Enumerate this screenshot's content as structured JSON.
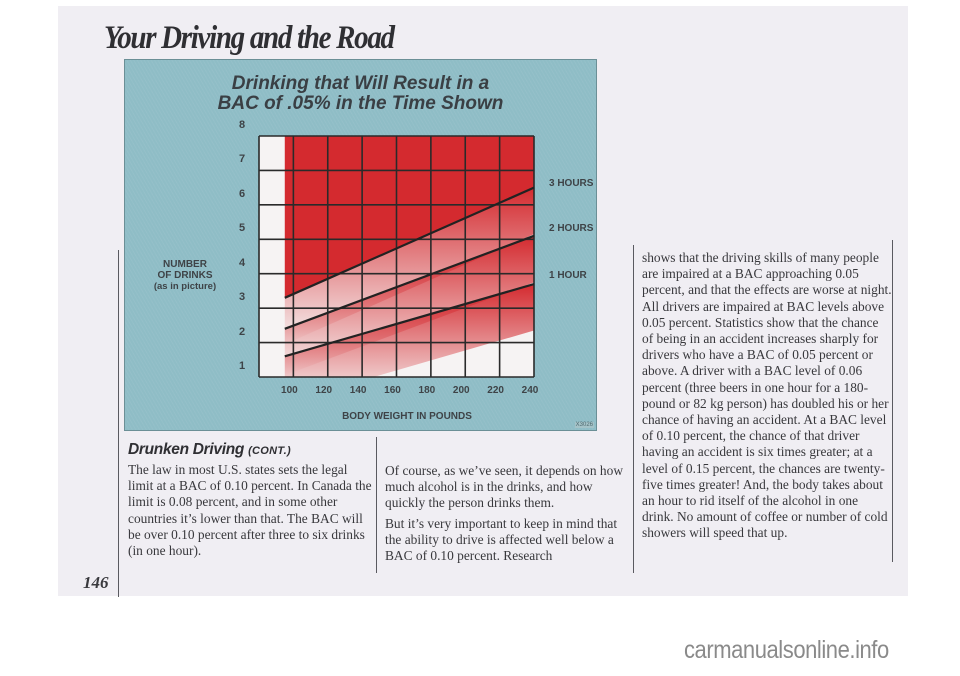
{
  "page": {
    "header_title": "Your Driving and the Road",
    "page_number": "146",
    "watermark": "carmanualsonline.info"
  },
  "figure": {
    "title_line1": "Drinking that Will Result in a",
    "title_line2": "BAC of .05% in the Time Shown",
    "y_axis_title_line1": "NUMBER",
    "y_axis_title_line2": "OF DRINKS",
    "y_axis_title_line3": "(as in picture)",
    "x_axis_title": "BODY WEIGHT IN POUNDS",
    "y_ticks": [
      "8",
      "7",
      "6",
      "5",
      "4",
      "3",
      "2",
      "1"
    ],
    "x_ticks": [
      "100",
      "120",
      "140",
      "160",
      "180",
      "200",
      "220",
      "240"
    ],
    "series_labels": [
      "3 HOURS",
      "2 HOURS",
      "1 HOUR"
    ],
    "figure_code": "X3026",
    "colors": {
      "panel": "#8fbdc6",
      "red": "#d42a2f",
      "grid": "#2a2a2a",
      "white_cell": "#f6f3f3"
    }
  },
  "chart_data": {
    "type": "line",
    "title": "Drinking that Will Result in a BAC of .05% in the Time Shown",
    "xlabel": "BODY WEIGHT IN POUNDS",
    "ylabel": "NUMBER OF DRINKS (as in picture)",
    "xlim": [
      80,
      240
    ],
    "ylim": [
      1,
      8
    ],
    "x_ticks": [
      100,
      120,
      140,
      160,
      180,
      200,
      220,
      240
    ],
    "y_ticks": [
      1,
      2,
      3,
      4,
      5,
      6,
      7,
      8
    ],
    "grid": true,
    "legend_position": "right (inline labels)",
    "series": [
      {
        "name": "3 HOURS",
        "x": [
          95,
          240
        ],
        "y": [
          3.3,
          6.5
        ]
      },
      {
        "name": "2 HOURS",
        "x": [
          95,
          240
        ],
        "y": [
          2.4,
          5.1
        ]
      },
      {
        "name": "1 HOUR",
        "x": [
          95,
          240
        ],
        "y": [
          1.6,
          3.7
        ]
      }
    ],
    "annotations": [
      "Red shaded region above each line fades to white below it",
      "Chart begins at about 95 lbs"
    ]
  },
  "section": {
    "heading": "Drunken Driving",
    "heading_suffix": "(CONT.)"
  },
  "columns": {
    "col1": [
      "The law in most U.S. states sets the legal limit at a BAC of 0.10 percent. In Canada the limit is 0.08 percent, and in some other countries it’s lower than that. The BAC will be over 0.10 percent after three to six drinks (in one hour)."
    ],
    "col2": [
      "Of course, as we’ve seen, it depends on how much alcohol is in the drinks, and how quickly the person drinks them.",
      "But it’s very important to keep in mind that the ability to drive is affected well below a BAC of 0.10 percent. Research"
    ],
    "col3": [
      "shows that the driving skills of many people are impaired at a BAC approaching 0.05 percent, and that the effects are worse at night. All drivers are impaired at BAC levels above 0.05 percent. Statistics show that the chance of being in an accident increases sharply for drivers who have a BAC of 0.05 percent or above. A driver with a BAC level of 0.06 percent (three beers in one hour for a 180-pound or 82 kg person) has doubled his or her chance of having an accident. At a BAC level of 0.10 percent, the chance of that driver having an accident is six times greater; at a level of 0.15 percent, the chances are twenty-five times greater! And, the body takes about an hour to rid itself of the alcohol in one drink. No amount of coffee or number of cold showers will speed that up."
    ]
  }
}
